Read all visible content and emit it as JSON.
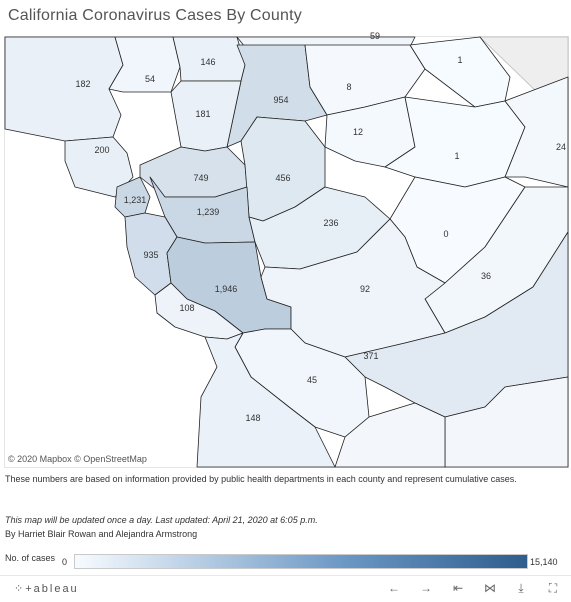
{
  "page": {
    "title": "California Coronavirus Cases By County"
  },
  "map": {
    "attribution": "© 2020 Mapbox © OpenStreetMap",
    "colors": {
      "low": "#f7fbff",
      "high": "#2e5d8e",
      "border": "#222222"
    },
    "counties": [
      {
        "label": "182",
        "cases": 182
      },
      {
        "label": "54",
        "cases": 54
      },
      {
        "label": "146",
        "cases": 146
      },
      {
        "label": "59",
        "cases": 59
      },
      {
        "label": "954",
        "cases": 954
      },
      {
        "label": "8",
        "cases": 8
      },
      {
        "label": "1",
        "cases": 1
      },
      {
        "label": "181",
        "cases": 181
      },
      {
        "label": "12",
        "cases": 12
      },
      {
        "label": "200",
        "cases": 200
      },
      {
        "label": "749",
        "cases": 749
      },
      {
        "label": "456",
        "cases": 456
      },
      {
        "label": "1",
        "cases": 1
      },
      {
        "label": "24",
        "cases": 24
      },
      {
        "label": "1,231",
        "cases": 1231
      },
      {
        "label": "1,239",
        "cases": 1239
      },
      {
        "label": "236",
        "cases": 236
      },
      {
        "label": "0",
        "cases": 0
      },
      {
        "label": "935",
        "cases": 935
      },
      {
        "label": "36",
        "cases": 36
      },
      {
        "label": "1,946",
        "cases": 1946
      },
      {
        "label": "92",
        "cases": 92
      },
      {
        "label": "108",
        "cases": 108
      },
      {
        "label": "371",
        "cases": 371
      },
      {
        "label": "45",
        "cases": 45
      },
      {
        "label": "148",
        "cases": 148
      }
    ]
  },
  "notes": {
    "description": "These numbers are based on information provided by public health departments in each county and represent cumulative cases.",
    "update": "This map will be updated once a day. Last updated: April 21, 2020 at 6:05 p.m.",
    "byline": "By Harriet Blair Rowan and Alejandra Armstrong"
  },
  "legend": {
    "label": "No. of cases",
    "min": "0",
    "max": "15,140"
  },
  "footer": {
    "logo": "⁘+ableau",
    "buttons": [
      {
        "name": "undo-icon",
        "glyph": "←"
      },
      {
        "name": "redo-icon",
        "glyph": "→"
      },
      {
        "name": "revert-icon",
        "glyph": "⇤"
      },
      {
        "name": "share-icon",
        "glyph": "⋈"
      },
      {
        "name": "download-icon",
        "glyph": "⤓"
      },
      {
        "name": "fullscreen-icon",
        "glyph": "⛶"
      }
    ]
  }
}
